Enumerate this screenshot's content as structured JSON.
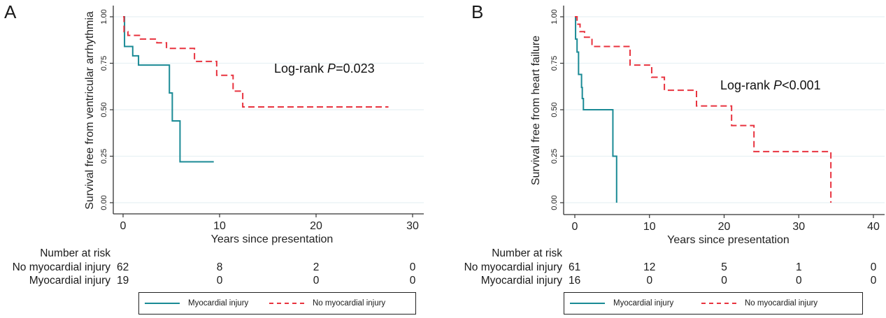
{
  "colors": {
    "myocardial_injury": "#1a8a95",
    "no_myocardial_injury": "#e8333f",
    "grid": "#e8f1f4",
    "axis": "#333333"
  },
  "chart_data": [
    {
      "type": "line",
      "subtype": "kaplan-meier step",
      "panel_label": "A",
      "title": "",
      "xlabel": "Years since presentation",
      "ylabel": "Survival free from ventricular arrhythmia",
      "xlim": [
        0,
        30
      ],
      "ylim": [
        0,
        1
      ],
      "xticks": [
        0,
        10,
        20,
        30
      ],
      "xtick_labels": [
        "0",
        "10",
        "20",
        "30"
      ],
      "yticks": [
        0,
        0.25,
        0.5,
        0.75,
        1.0
      ],
      "ytick_labels": [
        "0.00",
        "0.25",
        "0.50",
        "0.75",
        "1.00"
      ],
      "grid": true,
      "annotation": {
        "prefix": "Log-rank ",
        "italic": "P",
        "suffix": "=0.023"
      },
      "series": [
        {
          "name": "Myocardial injury",
          "style": "solid",
          "steps": [
            [
              0,
              1.0
            ],
            [
              0.15,
              0.84
            ],
            [
              1.0,
              0.79
            ],
            [
              1.6,
              0.74
            ],
            [
              4.8,
              0.59
            ],
            [
              5.1,
              0.44
            ],
            [
              5.9,
              0.22
            ]
          ],
          "end_x": 9.4
        },
        {
          "name": "No myocardial injury",
          "style": "dashed",
          "steps": [
            [
              0,
              1.0
            ],
            [
              0.1,
              0.92
            ],
            [
              0.5,
              0.9
            ],
            [
              1.8,
              0.88
            ],
            [
              3.5,
              0.86
            ],
            [
              4.5,
              0.83
            ],
            [
              7.4,
              0.76
            ],
            [
              9.7,
              0.685
            ],
            [
              11.4,
              0.6
            ],
            [
              12.4,
              0.515
            ]
          ],
          "end_x": 27.5
        }
      ],
      "risk_table": {
        "title": "Number at risk",
        "times": [
          0,
          10,
          20,
          30
        ],
        "rows": [
          {
            "label": "No myocardial injury",
            "values": [
              "62",
              "8",
              "2",
              "0"
            ]
          },
          {
            "label": "Myocardial injury",
            "values": [
              "19",
              "0",
              "0",
              "0"
            ]
          }
        ]
      },
      "legend": {
        "placement": "bottom",
        "entries": [
          {
            "label": "Myocardial injury",
            "style": "solid"
          },
          {
            "label": "No myocardial injury",
            "style": "dashed"
          }
        ]
      }
    },
    {
      "type": "line",
      "subtype": "kaplan-meier step",
      "panel_label": "B",
      "title": "",
      "xlabel": "Years since presentation",
      "ylabel": "Survival free from heart failure",
      "xlim": [
        0,
        40
      ],
      "ylim": [
        0,
        1
      ],
      "xticks": [
        0,
        10,
        20,
        30,
        40
      ],
      "xtick_labels": [
        "0",
        "10",
        "20",
        "30",
        "40"
      ],
      "yticks": [
        0,
        0.25,
        0.5,
        0.75,
        1.0
      ],
      "ytick_labels": [
        "0.00",
        "0.25",
        "0.50",
        "0.75",
        "1.00"
      ],
      "grid": true,
      "annotation": {
        "prefix": "Log-rank ",
        "italic": "P",
        "suffix": "<0.001"
      },
      "series": [
        {
          "name": "Myocardial injury",
          "style": "solid",
          "steps": [
            [
              0,
              1.0
            ],
            [
              0.1,
              0.88
            ],
            [
              0.3,
              0.81
            ],
            [
              0.5,
              0.69
            ],
            [
              0.9,
              0.62
            ],
            [
              1.0,
              0.56
            ],
            [
              1.15,
              0.5
            ],
            [
              5.1,
              0.25
            ],
            [
              5.6,
              0.0
            ]
          ],
          "end_x": 5.6
        },
        {
          "name": "No myocardial injury",
          "style": "dashed",
          "steps": [
            [
              0,
              1.0
            ],
            [
              0.3,
              0.96
            ],
            [
              0.7,
              0.92
            ],
            [
              1.3,
              0.89
            ],
            [
              2.3,
              0.84
            ],
            [
              7.4,
              0.74
            ],
            [
              10.3,
              0.675
            ],
            [
              12.0,
              0.605
            ],
            [
              16.3,
              0.52
            ],
            [
              21.0,
              0.415
            ],
            [
              24.0,
              0.275
            ],
            [
              34.3,
              0.0
            ]
          ],
          "end_x": 34.3
        }
      ],
      "risk_table": {
        "title": "Number at risk",
        "times": [
          0,
          10,
          20,
          30,
          40
        ],
        "rows": [
          {
            "label": "No myocardial injury",
            "values": [
              "61",
              "12",
              "5",
              "1",
              "0"
            ]
          },
          {
            "label": "Myocardial injury",
            "values": [
              "16",
              "0",
              "0",
              "0",
              "0"
            ]
          }
        ]
      },
      "legend": {
        "placement": "bottom",
        "entries": [
          {
            "label": "Myocardial injury",
            "style": "solid"
          },
          {
            "label": "No myocardial injury",
            "style": "dashed"
          }
        ]
      }
    }
  ]
}
